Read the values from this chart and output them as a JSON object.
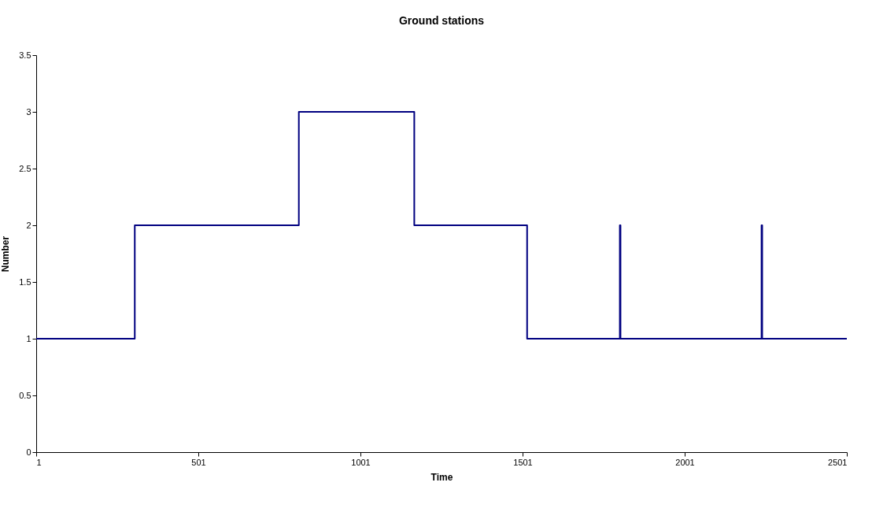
{
  "chart_data": {
    "type": "step",
    "title": "Ground stations",
    "xlabel": "Time",
    "ylabel": "Number",
    "x": [
      1,
      305,
      811,
      1167,
      1515,
      1801,
      1803,
      2238,
      2240,
      2501
    ],
    "series": [
      {
        "color": "#000080",
        "values": [
          1,
          2,
          3,
          2,
          1,
          2,
          1,
          2,
          1,
          1
        ]
      }
    ],
    "xlim": [
      1,
      2501
    ],
    "xticks": [
      1,
      501,
      1001,
      1501,
      2001,
      2501
    ],
    "ylim": [
      0,
      3.5
    ],
    "yticks": [
      0,
      0.5,
      1,
      1.5,
      2,
      2.5,
      3,
      3.5
    ],
    "grid": false,
    "marker": "none",
    "line_style": "solid"
  }
}
